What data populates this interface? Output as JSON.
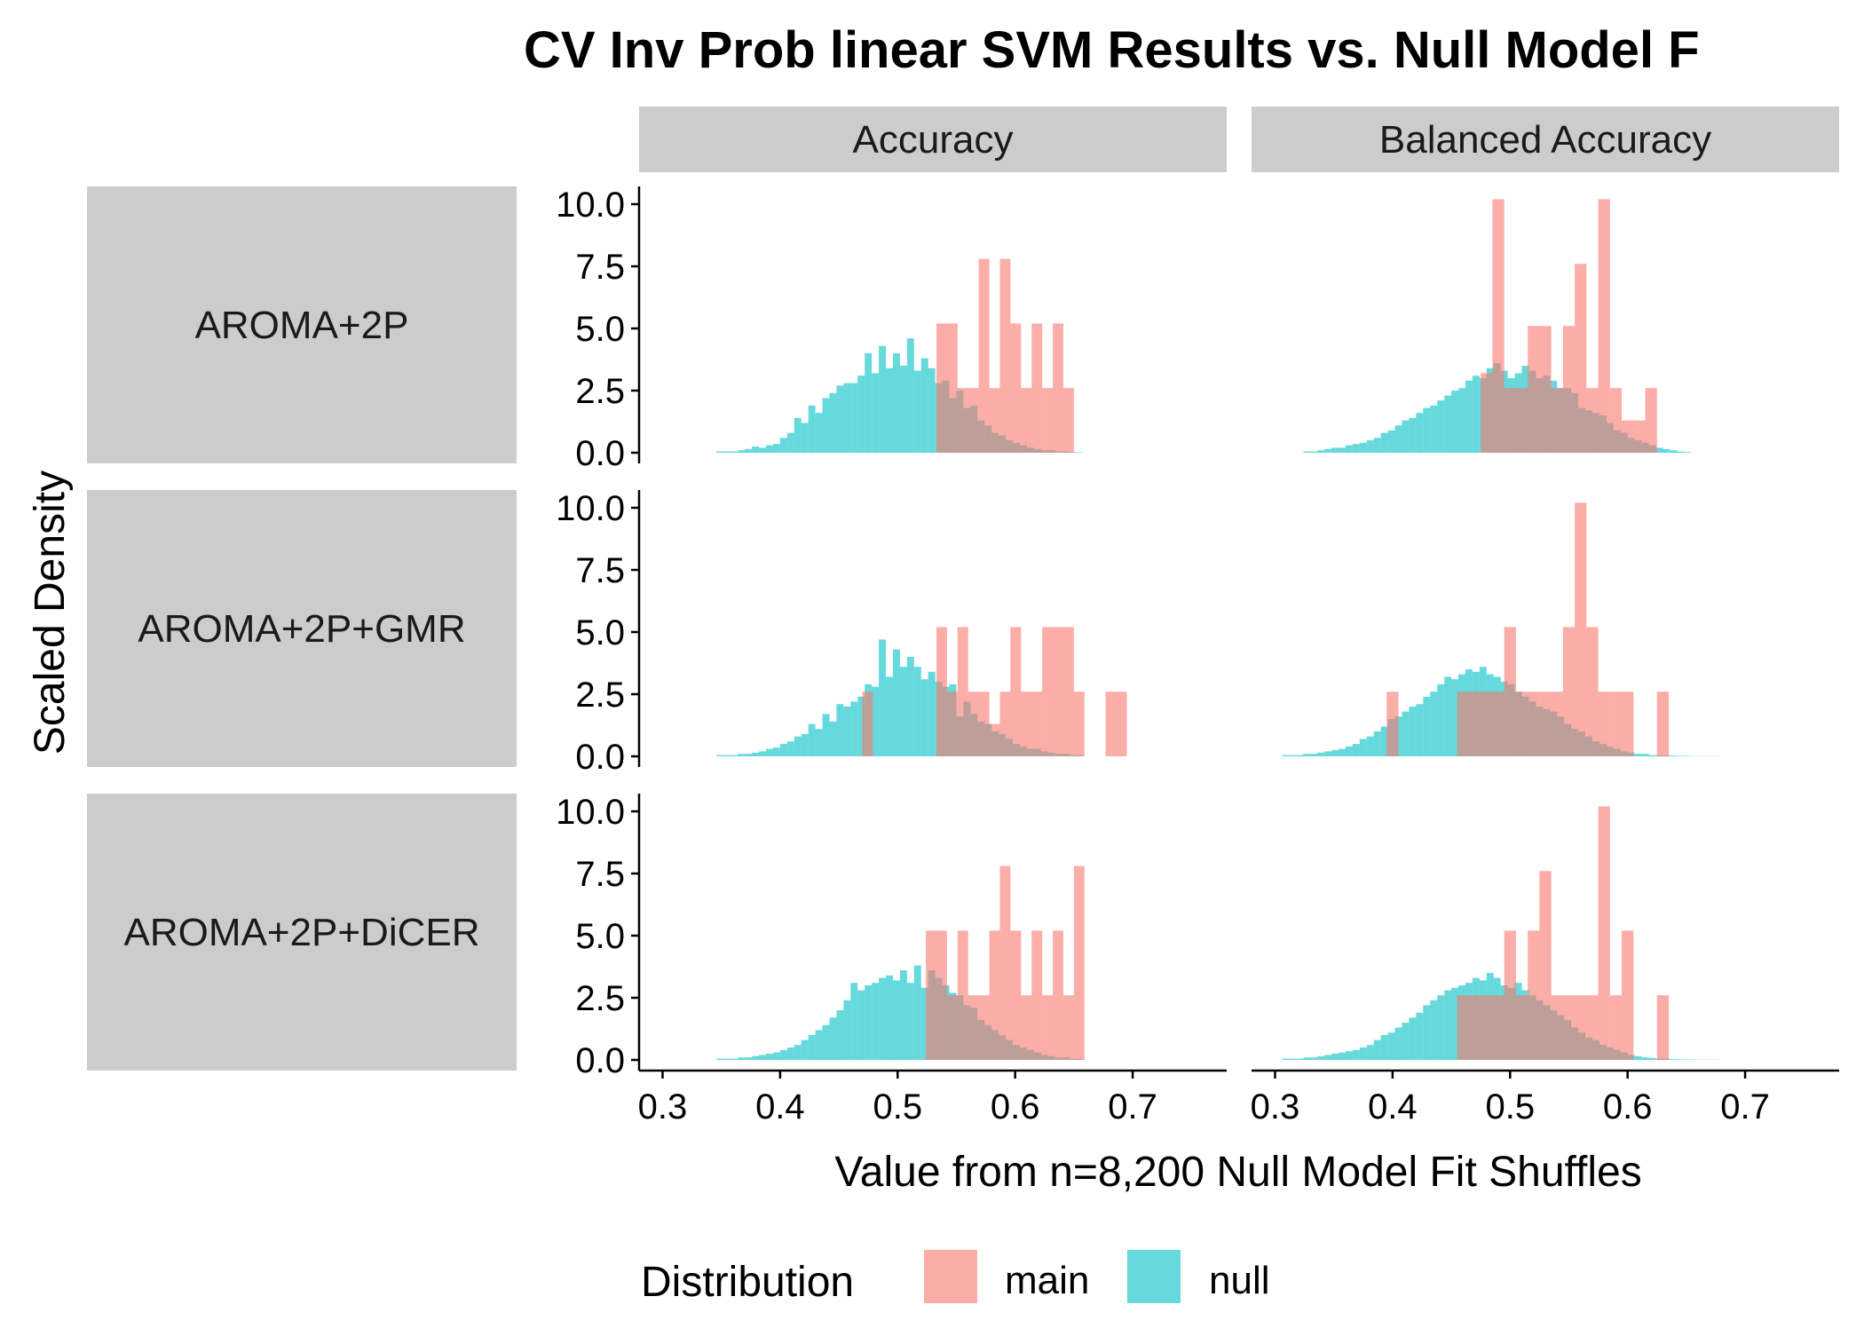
{
  "chart_data": {
    "type": "bar",
    "chart_kind": "faceted overlaid histogram",
    "title": "CV Inv Prob linear SVM Results vs. Null Model F",
    "xlabel": "Value from n=8,200 Null Model Fit Shuffles",
    "ylabel": "Scaled Density",
    "xlim": [
      0.28,
      0.78
    ],
    "ylim": [
      0,
      10
    ],
    "x_ticks": [
      "0.3",
      "0.4",
      "0.5",
      "0.6",
      "0.7"
    ],
    "y_ticks": [
      "0.0",
      "2.5",
      "5.0",
      "7.5",
      "10.0"
    ],
    "grid": false,
    "legend": {
      "title": "Distribution",
      "placement": "bottom",
      "entries": [
        "main",
        "null"
      ]
    },
    "colors": {
      "main": "#F8766D",
      "null": "#00BFC4",
      "strip": "#CCCCCC"
    },
    "column_facets": [
      "Accuracy",
      "Balanced Accuracy"
    ],
    "row_facets": [
      "AROMA+2P",
      "AROMA+2P+GMR",
      "AROMA+2P+DiCER"
    ],
    "panels": [
      {
        "column": "Accuracy",
        "row": "AROMA+2P",
        "main_bins": [
          {
            "x0": 0.533,
            "x1": 0.551,
            "y": 5.2
          },
          {
            "x0": 0.551,
            "x1": 0.569,
            "y": 2.6
          },
          {
            "x0": 0.569,
            "x1": 0.578,
            "y": 7.8
          },
          {
            "x0": 0.578,
            "x1": 0.587,
            "y": 2.6
          },
          {
            "x0": 0.587,
            "x1": 0.596,
            "y": 7.8
          },
          {
            "x0": 0.596,
            "x1": 0.605,
            "y": 5.2
          },
          {
            "x0": 0.605,
            "x1": 0.614,
            "y": 2.6
          },
          {
            "x0": 0.614,
            "x1": 0.623,
            "y": 5.2
          },
          {
            "x0": 0.623,
            "x1": 0.632,
            "y": 2.6
          },
          {
            "x0": 0.632,
            "x1": 0.641,
            "y": 5.2
          },
          {
            "x0": 0.641,
            "x1": 0.65,
            "y": 2.6
          }
        ],
        "null_start": 0.346,
        "null_width": 0.006,
        "null_heights": [
          0.05,
          0.05,
          0.05,
          0.1,
          0.15,
          0.25,
          0.2,
          0.3,
          0.35,
          0.6,
          0.8,
          1.4,
          1.2,
          1.9,
          1.6,
          2.2,
          2.4,
          2.7,
          2.8,
          2.8,
          3.1,
          4.0,
          3.2,
          4.3,
          3.4,
          4.0,
          3.5,
          4.6,
          3.3,
          3.8,
          3.4,
          2.8,
          2.9,
          2.2,
          2.5,
          1.8,
          1.9,
          1.3,
          1.1,
          0.8,
          0.7,
          0.5,
          0.4,
          0.3,
          0.2,
          0.15,
          0.1,
          0.1,
          0.05,
          0.05,
          0.03,
          0.02
        ]
      },
      {
        "column": "Balanced Accuracy",
        "row": "AROMA+2P",
        "main_bins": [
          {
            "x0": 0.475,
            "x1": 0.485,
            "y": 3.2
          },
          {
            "x0": 0.485,
            "x1": 0.495,
            "y": 10.2
          },
          {
            "x0": 0.495,
            "x1": 0.505,
            "y": 2.6
          },
          {
            "x0": 0.505,
            "x1": 0.515,
            "y": 2.6
          },
          {
            "x0": 0.515,
            "x1": 0.525,
            "y": 5.1
          },
          {
            "x0": 0.525,
            "x1": 0.535,
            "y": 5.1
          },
          {
            "x0": 0.535,
            "x1": 0.545,
            "y": 2.6
          },
          {
            "x0": 0.545,
            "x1": 0.555,
            "y": 5.1
          },
          {
            "x0": 0.555,
            "x1": 0.565,
            "y": 7.6
          },
          {
            "x0": 0.565,
            "x1": 0.575,
            "y": 2.6
          },
          {
            "x0": 0.575,
            "x1": 0.585,
            "y": 10.2
          },
          {
            "x0": 0.585,
            "x1": 0.595,
            "y": 2.6
          },
          {
            "x0": 0.595,
            "x1": 0.605,
            "y": 1.3
          },
          {
            "x0": 0.605,
            "x1": 0.615,
            "y": 1.3
          },
          {
            "x0": 0.615,
            "x1": 0.625,
            "y": 2.6
          }
        ],
        "null_start": 0.324,
        "null_width": 0.006,
        "null_heights": [
          0.05,
          0.05,
          0.1,
          0.15,
          0.2,
          0.2,
          0.3,
          0.35,
          0.4,
          0.5,
          0.6,
          0.8,
          0.9,
          1.1,
          1.3,
          1.4,
          1.6,
          1.8,
          1.9,
          2.1,
          2.3,
          2.5,
          2.6,
          2.9,
          3.1,
          3.0,
          3.4,
          3.6,
          3.3,
          3.0,
          3.2,
          3.5,
          3.3,
          3.0,
          3.1,
          2.9,
          2.6,
          2.6,
          2.4,
          1.8,
          1.7,
          1.6,
          1.5,
          1.2,
          0.9,
          0.8,
          0.6,
          0.5,
          0.4,
          0.3,
          0.2,
          0.15,
          0.1,
          0.05,
          0.03
        ]
      },
      {
        "column": "Accuracy",
        "row": "AROMA+2P+GMR",
        "main_bins": [
          {
            "x0": 0.47,
            "x1": 0.479,
            "y": 2.6
          },
          {
            "x0": 0.533,
            "x1": 0.542,
            "y": 5.2
          },
          {
            "x0": 0.542,
            "x1": 0.551,
            "y": 2.6
          },
          {
            "x0": 0.551,
            "x1": 0.56,
            "y": 5.2
          },
          {
            "x0": 0.56,
            "x1": 0.569,
            "y": 2.6
          },
          {
            "x0": 0.569,
            "x1": 0.578,
            "y": 2.6
          },
          {
            "x0": 0.578,
            "x1": 0.587,
            "y": 1.3
          },
          {
            "x0": 0.587,
            "x1": 0.596,
            "y": 2.6
          },
          {
            "x0": 0.596,
            "x1": 0.605,
            "y": 5.2
          },
          {
            "x0": 0.605,
            "x1": 0.623,
            "y": 2.6
          },
          {
            "x0": 0.623,
            "x1": 0.65,
            "y": 5.2
          },
          {
            "x0": 0.65,
            "x1": 0.659,
            "y": 2.6
          },
          {
            "x0": 0.677,
            "x1": 0.695,
            "y": 2.6
          }
        ],
        "null_start": 0.346,
        "null_width": 0.006,
        "null_heights": [
          0.05,
          0.05,
          0.05,
          0.1,
          0.1,
          0.15,
          0.2,
          0.3,
          0.35,
          0.5,
          0.6,
          0.8,
          0.9,
          1.3,
          1.1,
          1.7,
          1.4,
          2.1,
          2.0,
          2.2,
          2.4,
          2.9,
          2.8,
          4.7,
          3.2,
          4.3,
          3.6,
          4.0,
          3.6,
          3.1,
          3.4,
          3.0,
          2.8,
          2.9,
          1.6,
          2.2,
          1.7,
          1.4,
          1.3,
          1.0,
          0.9,
          0.7,
          0.5,
          0.4,
          0.3,
          0.3,
          0.2,
          0.15,
          0.1,
          0.1,
          0.05,
          0.05
        ]
      },
      {
        "column": "Balanced Accuracy",
        "row": "AROMA+2P+GMR",
        "main_bins": [
          {
            "x0": 0.395,
            "x1": 0.405,
            "y": 2.6
          },
          {
            "x0": 0.455,
            "x1": 0.465,
            "y": 2.6
          },
          {
            "x0": 0.465,
            "x1": 0.475,
            "y": 2.6
          },
          {
            "x0": 0.475,
            "x1": 0.485,
            "y": 2.6
          },
          {
            "x0": 0.485,
            "x1": 0.495,
            "y": 2.6
          },
          {
            "x0": 0.495,
            "x1": 0.505,
            "y": 5.2
          },
          {
            "x0": 0.505,
            "x1": 0.515,
            "y": 2.6
          },
          {
            "x0": 0.515,
            "x1": 0.525,
            "y": 2.6
          },
          {
            "x0": 0.525,
            "x1": 0.535,
            "y": 2.6
          },
          {
            "x0": 0.535,
            "x1": 0.545,
            "y": 2.6
          },
          {
            "x0": 0.545,
            "x1": 0.555,
            "y": 5.2
          },
          {
            "x0": 0.555,
            "x1": 0.565,
            "y": 10.2
          },
          {
            "x0": 0.565,
            "x1": 0.575,
            "y": 5.2
          },
          {
            "x0": 0.575,
            "x1": 0.585,
            "y": 2.6
          },
          {
            "x0": 0.585,
            "x1": 0.595,
            "y": 2.6
          },
          {
            "x0": 0.595,
            "x1": 0.605,
            "y": 2.6
          },
          {
            "x0": 0.625,
            "x1": 0.635,
            "y": 2.6
          }
        ],
        "null_start": 0.306,
        "null_width": 0.006,
        "null_heights": [
          0.05,
          0.05,
          0.05,
          0.1,
          0.1,
          0.15,
          0.2,
          0.25,
          0.3,
          0.4,
          0.5,
          0.7,
          0.8,
          1.0,
          1.2,
          1.5,
          1.6,
          1.8,
          2.0,
          2.1,
          2.4,
          2.6,
          2.9,
          3.2,
          3.1,
          3.3,
          3.5,
          3.4,
          3.6,
          3.3,
          3.2,
          3.0,
          2.9,
          2.6,
          2.4,
          2.2,
          2.0,
          1.9,
          1.8,
          1.6,
          1.3,
          1.1,
          1.0,
          0.8,
          0.6,
          0.5,
          0.4,
          0.3,
          0.2,
          0.15,
          0.1,
          0.1,
          0.05,
          0.05,
          0.05,
          0.03,
          0.02,
          0.02,
          0.01,
          0.01,
          0.01,
          0.01
        ]
      },
      {
        "column": "Accuracy",
        "row": "AROMA+2P+DiCER",
        "main_bins": [
          {
            "x0": 0.524,
            "x1": 0.542,
            "y": 5.2
          },
          {
            "x0": 0.542,
            "x1": 0.551,
            "y": 2.6
          },
          {
            "x0": 0.551,
            "x1": 0.56,
            "y": 5.2
          },
          {
            "x0": 0.56,
            "x1": 0.569,
            "y": 2.6
          },
          {
            "x0": 0.569,
            "x1": 0.578,
            "y": 2.6
          },
          {
            "x0": 0.578,
            "x1": 0.587,
            "y": 5.2
          },
          {
            "x0": 0.587,
            "x1": 0.596,
            "y": 7.8
          },
          {
            "x0": 0.596,
            "x1": 0.605,
            "y": 5.2
          },
          {
            "x0": 0.605,
            "x1": 0.614,
            "y": 2.6
          },
          {
            "x0": 0.614,
            "x1": 0.623,
            "y": 5.2
          },
          {
            "x0": 0.623,
            "x1": 0.632,
            "y": 2.6
          },
          {
            "x0": 0.632,
            "x1": 0.641,
            "y": 5.2
          },
          {
            "x0": 0.641,
            "x1": 0.65,
            "y": 2.6
          },
          {
            "x0": 0.65,
            "x1": 0.659,
            "y": 7.8
          }
        ],
        "null_start": 0.346,
        "null_width": 0.006,
        "null_heights": [
          0.05,
          0.05,
          0.05,
          0.1,
          0.1,
          0.15,
          0.2,
          0.25,
          0.3,
          0.4,
          0.5,
          0.6,
          0.8,
          1.0,
          1.2,
          1.4,
          1.7,
          2.0,
          2.4,
          3.1,
          2.8,
          3.0,
          3.1,
          3.3,
          3.4,
          3.2,
          3.6,
          3.1,
          3.8,
          2.9,
          3.6,
          3.3,
          3.0,
          2.7,
          2.6,
          2.2,
          2.1,
          1.6,
          1.4,
          1.2,
          1.0,
          0.8,
          0.6,
          0.5,
          0.4,
          0.3,
          0.2,
          0.15,
          0.1,
          0.1,
          0.05,
          0.05
        ]
      },
      {
        "column": "Balanced Accuracy",
        "row": "AROMA+2P+DiCER",
        "main_bins": [
          {
            "x0": 0.455,
            "x1": 0.465,
            "y": 2.6
          },
          {
            "x0": 0.465,
            "x1": 0.475,
            "y": 2.6
          },
          {
            "x0": 0.475,
            "x1": 0.485,
            "y": 2.6
          },
          {
            "x0": 0.485,
            "x1": 0.495,
            "y": 2.6
          },
          {
            "x0": 0.495,
            "x1": 0.505,
            "y": 5.2
          },
          {
            "x0": 0.505,
            "x1": 0.515,
            "y": 2.6
          },
          {
            "x0": 0.515,
            "x1": 0.525,
            "y": 5.2
          },
          {
            "x0": 0.525,
            "x1": 0.535,
            "y": 7.6
          },
          {
            "x0": 0.535,
            "x1": 0.545,
            "y": 2.6
          },
          {
            "x0": 0.545,
            "x1": 0.555,
            "y": 2.6
          },
          {
            "x0": 0.555,
            "x1": 0.565,
            "y": 2.6
          },
          {
            "x0": 0.565,
            "x1": 0.575,
            "y": 2.6
          },
          {
            "x0": 0.575,
            "x1": 0.585,
            "y": 10.2
          },
          {
            "x0": 0.585,
            "x1": 0.595,
            "y": 2.6
          },
          {
            "x0": 0.595,
            "x1": 0.605,
            "y": 5.2
          },
          {
            "x0": 0.625,
            "x1": 0.635,
            "y": 2.6
          }
        ],
        "null_start": 0.306,
        "null_width": 0.006,
        "null_heights": [
          0.05,
          0.05,
          0.05,
          0.1,
          0.1,
          0.15,
          0.2,
          0.25,
          0.3,
          0.35,
          0.4,
          0.5,
          0.6,
          0.8,
          1.0,
          1.1,
          1.3,
          1.5,
          1.7,
          1.9,
          2.2,
          2.4,
          2.6,
          2.8,
          2.9,
          3.0,
          3.1,
          3.3,
          3.2,
          3.5,
          3.3,
          3.0,
          2.9,
          3.1,
          2.8,
          2.6,
          2.4,
          2.2,
          2.0,
          1.8,
          1.6,
          1.3,
          1.1,
          0.9,
          0.8,
          0.6,
          0.5,
          0.4,
          0.3,
          0.2,
          0.15,
          0.1,
          0.08,
          0.05,
          0.05,
          0.03,
          0.02,
          0.02,
          0.01,
          0.01,
          0.01,
          0.01
        ]
      }
    ]
  }
}
